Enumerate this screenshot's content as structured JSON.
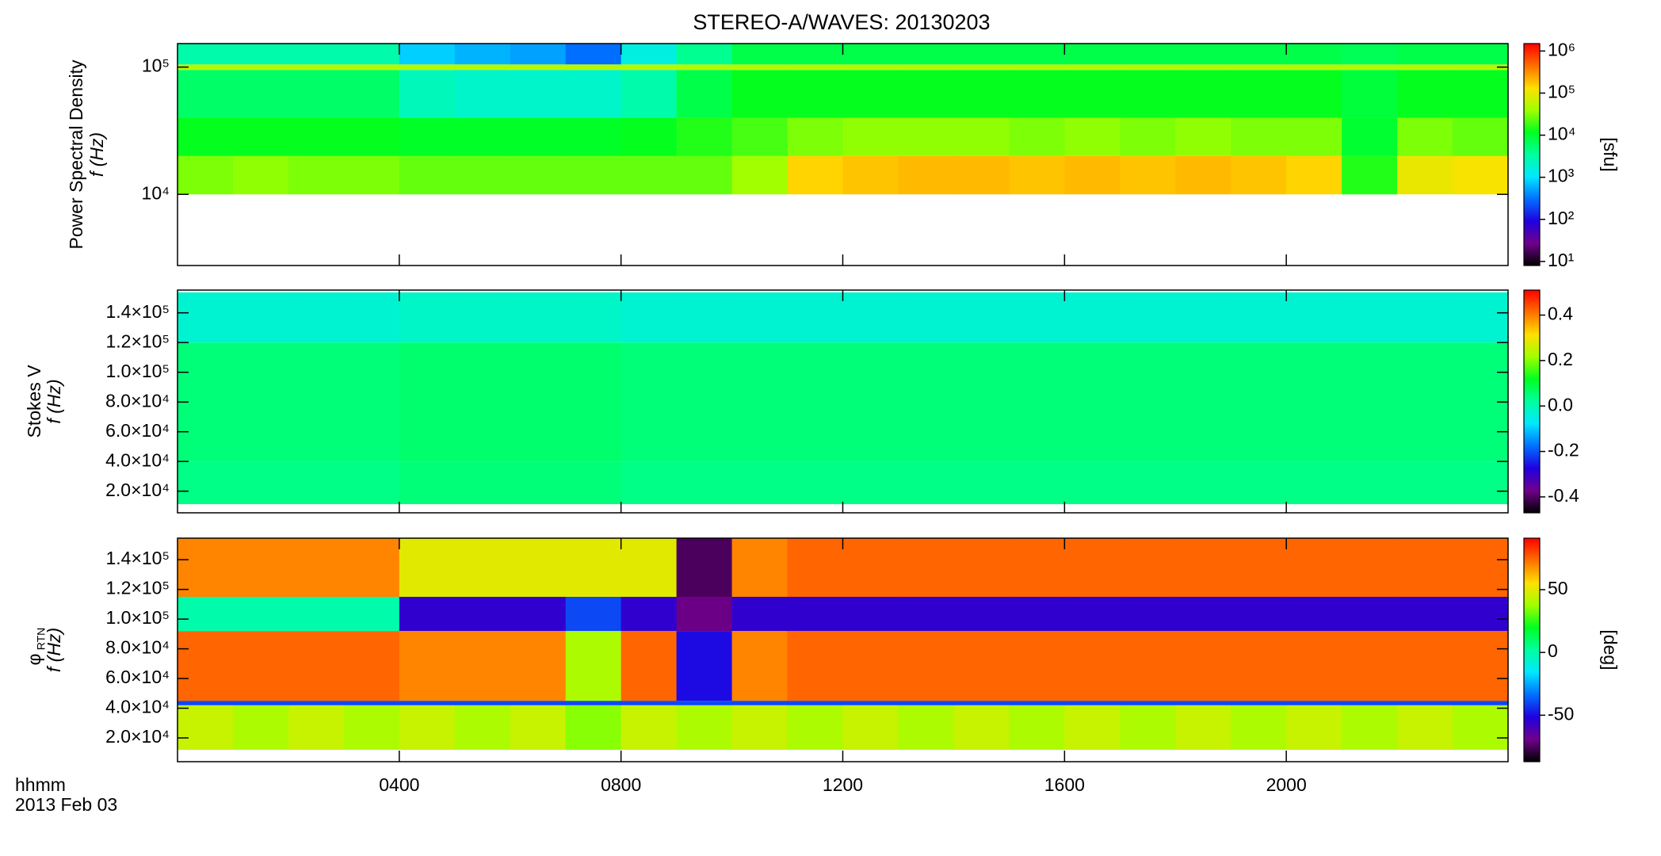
{
  "title": "STEREO-A/WAVES: 20130203",
  "x_axis": {
    "label": "hhmm",
    "date": "2013 Feb 03",
    "xlim": [
      0,
      24
    ],
    "xticks": [
      {
        "value": 4,
        "label": "0400"
      },
      {
        "value": 8,
        "label": "0800"
      },
      {
        "value": 12,
        "label": "1200"
      },
      {
        "value": 16,
        "label": "1600"
      },
      {
        "value": 20,
        "label": "2000"
      }
    ]
  },
  "colormap": [
    "#000000",
    "#70008c",
    "#2000e0",
    "#0070ff",
    "#00e8ff",
    "#00ffa0",
    "#00ff20",
    "#a0ff00",
    "#ffe000",
    "#ff7000",
    "#ff0000"
  ],
  "chart_data": [
    {
      "type": "heatmap",
      "ylabel": [
        "Power Spectral Density",
        "f (Hz)"
      ],
      "ylog": true,
      "ylim": [
        2760,
        153000
      ],
      "yticks": [
        {
          "value": 10000,
          "label": "10⁴"
        },
        {
          "value": 100000,
          "label": "10⁵"
        }
      ],
      "y_edges": [
        10000,
        20000,
        40000,
        95000,
        105000,
        153000
      ],
      "rows": [
        [
          30000,
          35000,
          30000,
          30000,
          25000,
          25000,
          25000,
          25000,
          25000,
          25000,
          40000,
          150000,
          180000,
          200000,
          200000,
          180000,
          200000,
          180000,
          200000,
          180000,
          150000,
          15000,
          100000,
          120000
        ],
        [
          12000,
          12000,
          12000,
          12000,
          11000,
          11000,
          11000,
          11000,
          12000,
          15000,
          20000,
          30000,
          35000,
          35000,
          35000,
          30000,
          35000,
          30000,
          35000,
          30000,
          30000,
          10000,
          30000,
          25000
        ],
        [
          6000,
          6000,
          6000,
          6000,
          2500,
          2000,
          2000,
          2000,
          3000,
          8000,
          12000,
          12000,
          12000,
          12000,
          12000,
          12000,
          12000,
          12000,
          12000,
          12000,
          12000,
          9000,
          12000,
          12000
        ],
        [
          50000,
          50000,
          50000,
          50000,
          50000,
          50000,
          50000,
          50000,
          50000,
          50000,
          50000,
          50000,
          50000,
          50000,
          50000,
          50000,
          50000,
          50000,
          50000,
          50000,
          50000,
          50000,
          50000,
          50000
        ],
        [
          3000,
          3000,
          3000,
          3000,
          800,
          600,
          500,
          300,
          1500,
          4000,
          8000,
          8000,
          8000,
          8000,
          8000,
          8000,
          8000,
          8000,
          8000,
          8000,
          8000,
          7000,
          8000,
          8000
        ]
      ],
      "zlog": true,
      "zlim": [
        8,
        1500000
      ],
      "zticks": [
        {
          "value": 10,
          "label": "10¹"
        },
        {
          "value": 100,
          "label": "10²"
        },
        {
          "value": 1000,
          "label": "10³"
        },
        {
          "value": 10000,
          "label": "10⁴"
        },
        {
          "value": 100000,
          "label": "10⁵"
        },
        {
          "value": 1000000,
          "label": "10⁶"
        }
      ],
      "zlabel": "[sfu]"
    },
    {
      "type": "heatmap",
      "ylabel": [
        "Stokes V",
        "f (Hz)"
      ],
      "ylog": false,
      "ylim": [
        5450,
        155300
      ],
      "yticks": [
        {
          "value": 20000,
          "label": "2.0×10⁴"
        },
        {
          "value": 40000,
          "label": "4.0×10⁴"
        },
        {
          "value": 60000,
          "label": "6.0×10⁴"
        },
        {
          "value": 80000,
          "label": "8.0×10⁴"
        },
        {
          "value": 100000,
          "label": "1.0×10⁵"
        },
        {
          "value": 120000,
          "label": "1.2×10⁵"
        },
        {
          "value": 140000,
          "label": "1.4×10⁵"
        }
      ],
      "y_edges": [
        11270,
        40000,
        120000,
        153800
      ],
      "rows": [
        [
          0.04,
          0.04,
          0.04,
          0.04,
          0.05,
          0.05,
          0.05,
          0.05,
          0.04,
          0.04,
          0.04,
          0.04,
          0.04,
          0.04,
          0.04,
          0.04,
          0.04,
          0.04,
          0.04,
          0.04,
          0.04,
          0.04,
          0.04,
          0.04
        ],
        [
          0.05,
          0.05,
          0.05,
          0.05,
          0.06,
          0.06,
          0.06,
          0.06,
          0.05,
          0.05,
          0.05,
          0.05,
          0.05,
          0.05,
          0.05,
          0.05,
          0.05,
          0.05,
          0.05,
          0.05,
          0.05,
          0.05,
          0.05,
          0.05
        ],
        [
          -0.03,
          -0.03,
          -0.03,
          -0.03,
          -0.02,
          -0.02,
          -0.02,
          -0.02,
          -0.03,
          -0.03,
          -0.03,
          -0.03,
          -0.03,
          -0.03,
          -0.03,
          -0.03,
          -0.03,
          -0.03,
          -0.03,
          -0.03,
          -0.03,
          -0.03,
          -0.03,
          -0.03
        ]
      ],
      "zlog": false,
      "zlim": [
        -0.47,
        0.51
      ],
      "zticks": [
        -0.4,
        -0.2,
        {
          "value": 0,
          "label": "0.0"
        },
        0.2,
        0.4
      ]
    },
    {
      "type": "heatmap",
      "ylabel": [
        "φ",
        "f (Hz)"
      ],
      "ylabel_sub": "RTN",
      "ylog": false,
      "ylim": [
        4000,
        154500
      ],
      "yticks": [
        {
          "value": 20000,
          "label": "2.0×10⁴"
        },
        {
          "value": 40000,
          "label": "4.0×10⁴"
        },
        {
          "value": 60000,
          "label": "6.0×10⁴"
        },
        {
          "value": 80000,
          "label": "8.0×10⁴"
        },
        {
          "value": 100000,
          "label": "1.0×10⁵"
        },
        {
          "value": 120000,
          "label": "1.2×10⁵"
        },
        {
          "value": 140000,
          "label": "1.4×10⁵"
        }
      ],
      "y_edges": [
        12000,
        42000,
        45000,
        92000,
        115000,
        154500
      ],
      "rows": [
        [
          45,
          40,
          45,
          40,
          45,
          40,
          45,
          35,
          45,
          40,
          45,
          40,
          45,
          40,
          45,
          40,
          45,
          40,
          45,
          40,
          45,
          40,
          45,
          40
        ],
        [
          -40,
          -40,
          -40,
          -40,
          -40,
          -40,
          -40,
          -40,
          -40,
          -40,
          -40,
          -40,
          -40,
          -40,
          -40,
          -40,
          -40,
          -40,
          -40,
          -40,
          -40,
          -40,
          -40,
          -40
        ],
        [
          75,
          75,
          75,
          75,
          70,
          70,
          70,
          40,
          75,
          -50,
          70,
          75,
          75,
          75,
          75,
          75,
          75,
          75,
          75,
          75,
          75,
          75,
          75,
          75
        ],
        [
          0,
          0,
          0,
          0,
          -55,
          -55,
          -55,
          -40,
          -55,
          -70,
          -55,
          -55,
          -55,
          -55,
          -55,
          -55,
          -55,
          -55,
          -55,
          -55,
          -55,
          -55,
          -55,
          -55
        ],
        [
          70,
          70,
          70,
          70,
          50,
          50,
          50,
          50,
          50,
          -75,
          70,
          75,
          75,
          75,
          75,
          75,
          75,
          75,
          75,
          75,
          75,
          75,
          75,
          75
        ]
      ],
      "zlog": false,
      "zlim": [
        -87,
        91
      ],
      "zticks": [
        -50,
        0,
        50
      ],
      "zlabel": "[deg]"
    }
  ]
}
